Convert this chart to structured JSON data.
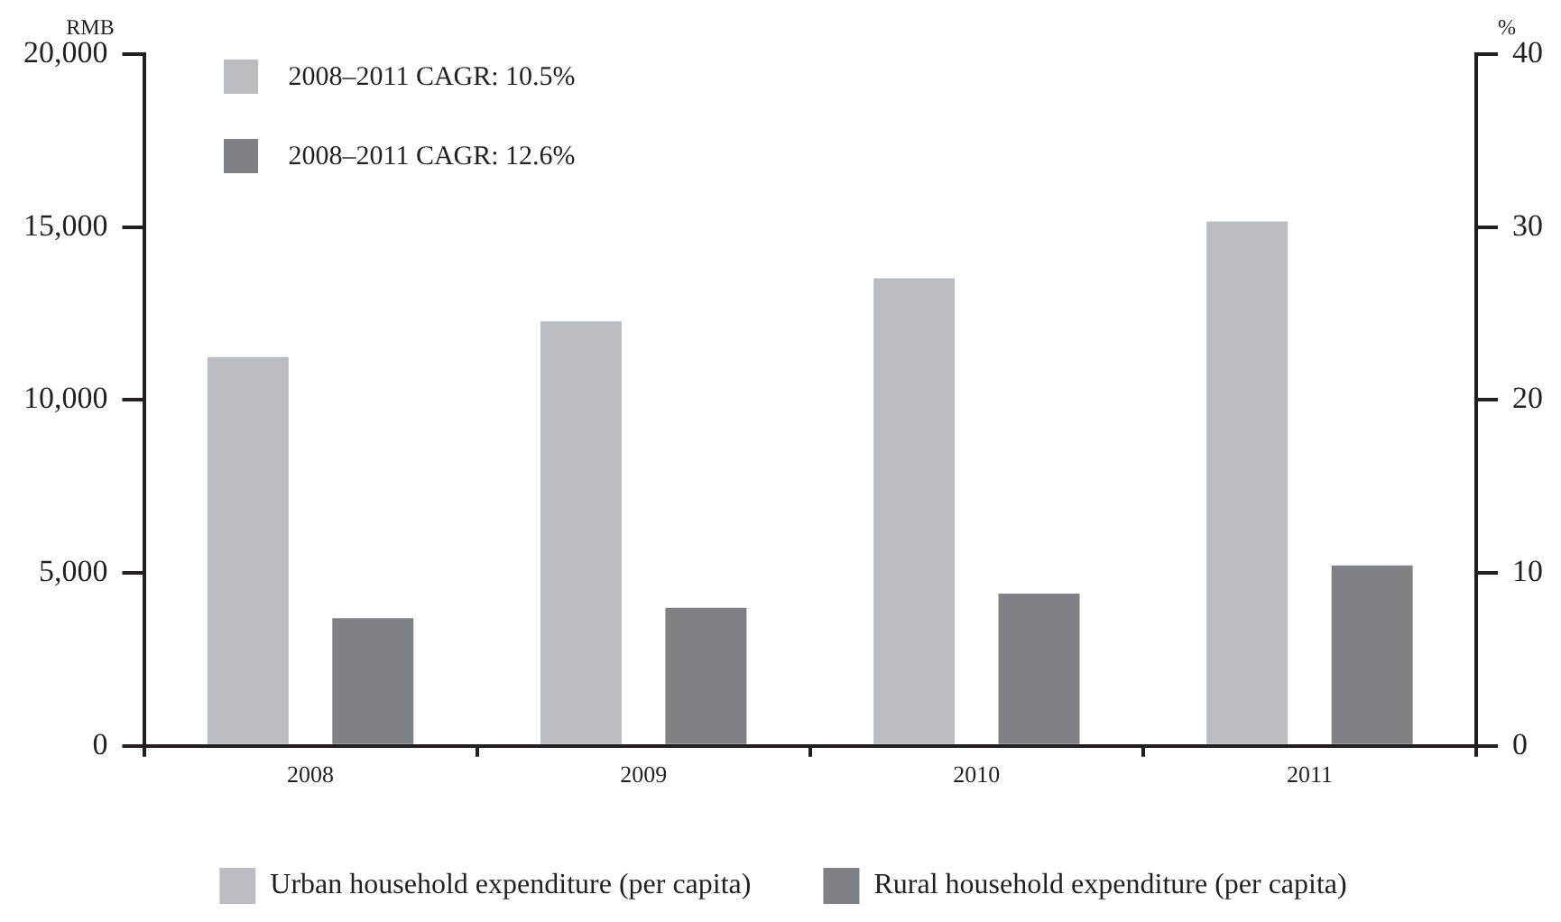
{
  "chart_data": {
    "type": "bar",
    "ylabel": "RMB",
    "y2label": "%",
    "categories": [
      "2008",
      "2009",
      "2010",
      "2011"
    ],
    "series": [
      {
        "name": "Urban household expenditure (per capita)",
        "color": "#bcbdc1",
        "values": [
          11240,
          12270,
          13520,
          15160
        ]
      },
      {
        "name": "Rural household expenditure (per capita)",
        "color": "#808185",
        "values": [
          3690,
          3990,
          4400,
          5220
        ]
      }
    ],
    "ylim": [
      0,
      20000
    ],
    "yticks": [
      0,
      {
        "value": 5000,
        "label": "5,000"
      },
      {
        "value": 10000,
        "label": "10,000"
      },
      {
        "value": 15000,
        "label": "15,000"
      },
      {
        "value": 20000,
        "label": "20,000"
      }
    ],
    "y2lim": [
      0,
      40
    ],
    "y2ticks": [
      0,
      10,
      20,
      30,
      40
    ],
    "annotations": [
      "2008–2011 CAGR: 10.5%",
      "2008–2011 CAGR: 12.6%"
    ],
    "grid": false,
    "legend": "bottom"
  }
}
